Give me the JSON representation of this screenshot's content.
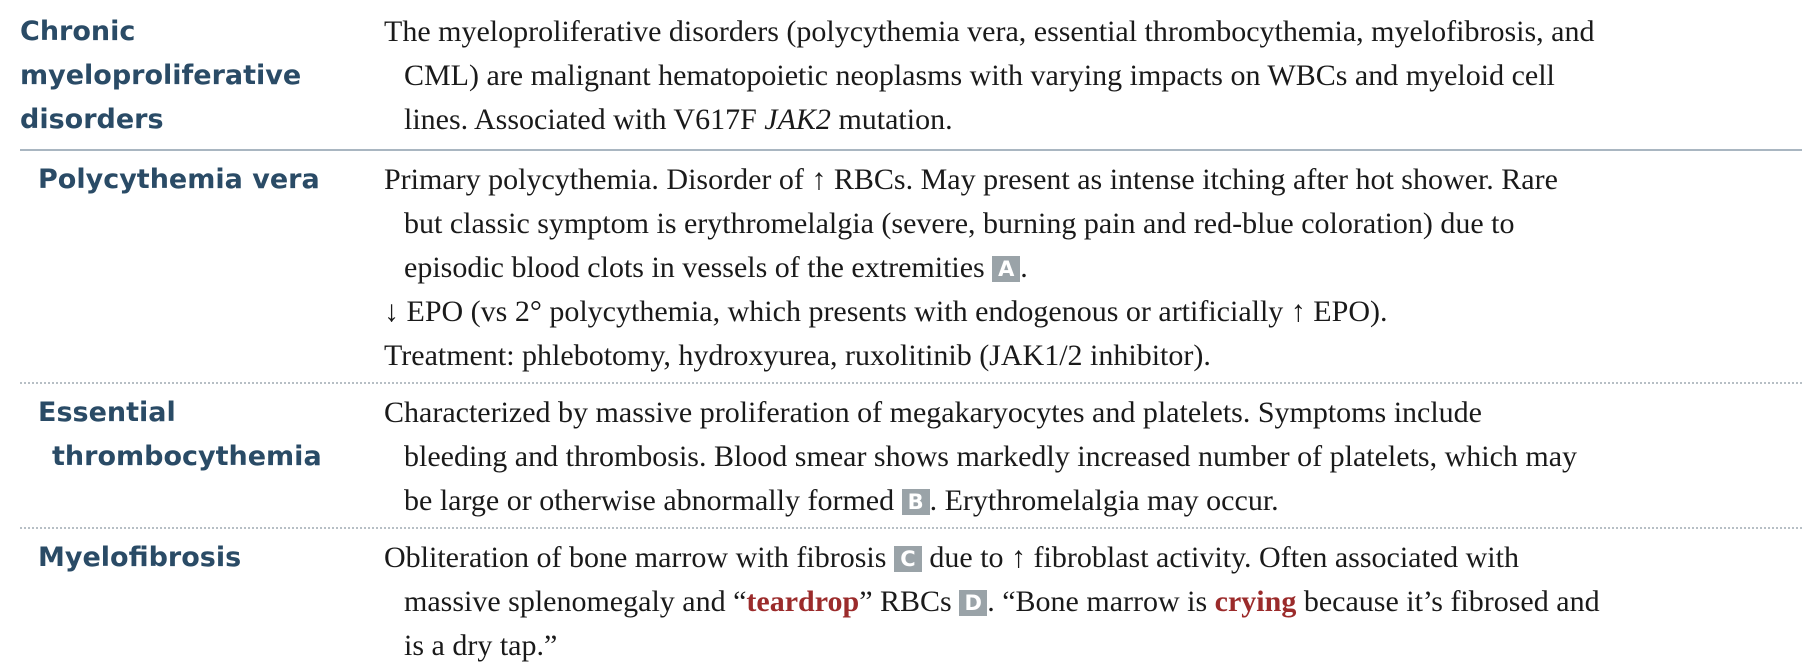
{
  "rows": [
    {
      "term_lines": [
        "Chronic",
        "myeloproliferative",
        "disorders"
      ],
      "lines": [
        "The myeloproliferative disorders (polycythemia vera, essential thrombocythemia, myelofibrosis, and",
        "CML) are malignant hematopoietic neoplasms with varying impacts on WBCs and myeloid cell",
        "lines. Associated with V617F ",
        "JAK2",
        " mutation."
      ]
    },
    {
      "term": "Polycythemia vera",
      "lines": [
        "Primary polycythemia. Disorder of ↑ RBCs. May present as intense itching after hot shower. Rare",
        "but classic symptom is erythromelalgia (severe, burning pain and red-blue coloration) due to",
        "episodic blood clots in vessels of the extremities ",
        ".",
        "↓ EPO (vs 2° polycythemia, which presents with endogenous or artificially ↑ EPO).",
        "Treatment: phlebotomy, hydroxyurea, ruxolitinib (JAK1/2 inhibitor)."
      ],
      "badge": "A"
    },
    {
      "term_lines": [
        "Essential",
        "thrombocythemia"
      ],
      "lines": [
        "Characterized by massive proliferation of megakaryocytes and platelets. Symptoms include",
        "bleeding and thrombosis. Blood smear shows markedly increased number of platelets, which may",
        "be large or otherwise abnormally formed ",
        ". Erythromelalgia may occur."
      ],
      "badge": "B"
    },
    {
      "term": "Myelofibrosis",
      "lines": [
        "Obliteration of bone marrow with fibrosis ",
        " due to ↑ fibroblast activity. Often associated with",
        "massive splenomegaly and “",
        "teardrop",
        "” RBCs ",
        ". “Bone marrow is ",
        "crying",
        " because it’s fibrosed and",
        "is a dry tap.”"
      ],
      "badges": [
        "C",
        "D"
      ]
    }
  ],
  "colors": {
    "term": "#2a4b66",
    "highlight": "#9b2b2b",
    "badge_bg": "#9aa3a8"
  }
}
